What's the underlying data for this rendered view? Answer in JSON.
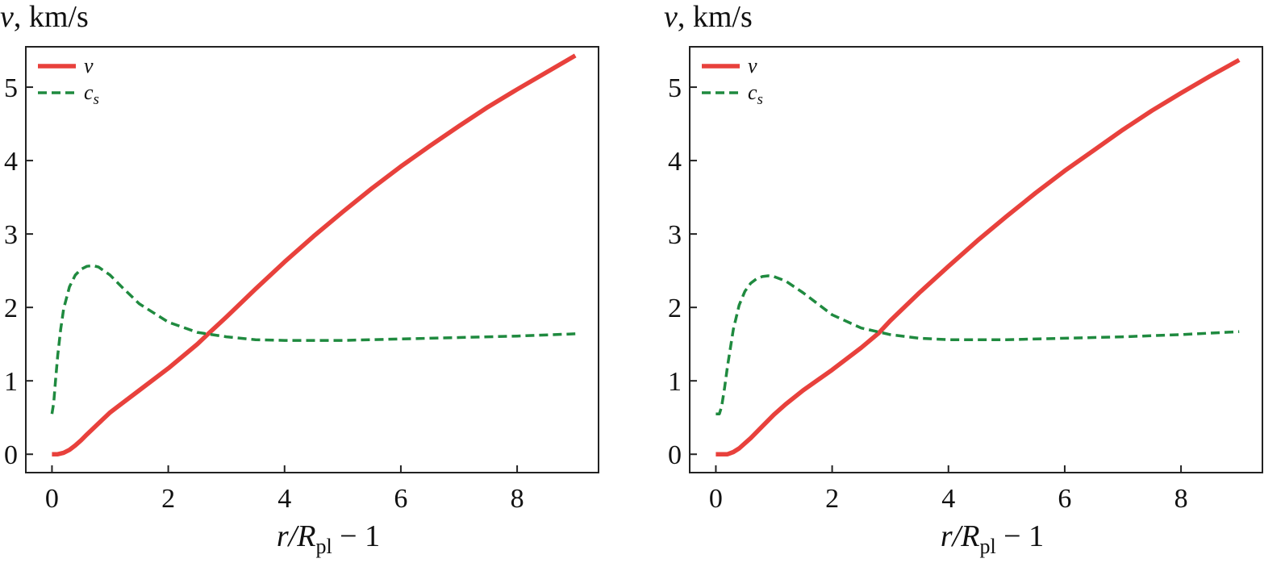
{
  "chart_data": [
    {
      "type": "line",
      "ylabel": "v, km/s",
      "xlabel": "r/Rpl − 1",
      "xlabel_parts": {
        "var": "r/",
        "R": "R",
        "sub": "pl",
        "tail": " − 1"
      },
      "xlim": [
        -0.45,
        9.4
      ],
      "ylim": [
        -0.25,
        5.55
      ],
      "xticks": [
        0,
        2,
        4,
        6,
        8
      ],
      "yticks": [
        0,
        1,
        2,
        3,
        4,
        5
      ],
      "legend_position": "top-left",
      "grid": false,
      "series": [
        {
          "name": "v",
          "color": "#e8413c",
          "dash": "solid",
          "x": [
            0,
            0.1,
            0.2,
            0.3,
            0.4,
            0.5,
            0.6,
            0.8,
            1.0,
            1.2,
            1.5,
            2.0,
            2.5,
            2.7,
            3.0,
            3.5,
            4.0,
            4.5,
            5.0,
            5.5,
            6.0,
            6.5,
            7.0,
            7.5,
            8.0,
            8.5,
            9.0
          ],
          "y": [
            0.0,
            0.0,
            0.02,
            0.06,
            0.12,
            0.19,
            0.27,
            0.42,
            0.57,
            0.69,
            0.87,
            1.17,
            1.5,
            1.65,
            1.87,
            2.25,
            2.62,
            2.97,
            3.3,
            3.62,
            3.92,
            4.2,
            4.47,
            4.73,
            4.97,
            5.2,
            5.43
          ]
        },
        {
          "name": "c_s",
          "color": "#1f8a3f",
          "dash": "dashed",
          "x": [
            0,
            0.03,
            0.06,
            0.1,
            0.15,
            0.2,
            0.3,
            0.4,
            0.5,
            0.6,
            0.7,
            0.8,
            1.0,
            1.2,
            1.5,
            2.0,
            2.5,
            3.0,
            3.5,
            4.0,
            5.0,
            6.0,
            7.0,
            8.0,
            9.0
          ],
          "y": [
            0.55,
            0.7,
            1.0,
            1.35,
            1.7,
            1.98,
            2.28,
            2.44,
            2.52,
            2.56,
            2.57,
            2.55,
            2.44,
            2.28,
            2.05,
            1.8,
            1.66,
            1.6,
            1.56,
            1.55,
            1.55,
            1.57,
            1.59,
            1.61,
            1.64
          ]
        }
      ]
    },
    {
      "type": "line",
      "ylabel": "v, km/s",
      "xlabel": "r/Rpl − 1",
      "xlabel_parts": {
        "var": "r/",
        "R": "R",
        "sub": "pl",
        "tail": " − 1"
      },
      "xlim": [
        -0.45,
        9.4
      ],
      "ylim": [
        -0.25,
        5.55
      ],
      "xticks": [
        0,
        2,
        4,
        6,
        8
      ],
      "yticks": [
        0,
        1,
        2,
        3,
        4,
        5
      ],
      "legend_position": "top-left",
      "grid": false,
      "series": [
        {
          "name": "v",
          "color": "#e8413c",
          "dash": "solid",
          "x": [
            0,
            0.1,
            0.2,
            0.3,
            0.4,
            0.5,
            0.6,
            0.8,
            1.0,
            1.2,
            1.5,
            2.0,
            2.5,
            2.8,
            3.0,
            3.5,
            4.0,
            4.5,
            5.0,
            5.5,
            6.0,
            6.5,
            7.0,
            7.5,
            8.0,
            8.5,
            9.0
          ],
          "y": [
            0.0,
            0.0,
            0.0,
            0.03,
            0.08,
            0.15,
            0.22,
            0.38,
            0.54,
            0.68,
            0.87,
            1.15,
            1.45,
            1.65,
            1.82,
            2.2,
            2.56,
            2.91,
            3.24,
            3.56,
            3.86,
            4.14,
            4.42,
            4.68,
            4.92,
            5.15,
            5.37
          ]
        },
        {
          "name": "c_s",
          "color": "#1f8a3f",
          "dash": "dashed",
          "x": [
            0,
            0.06,
            0.1,
            0.15,
            0.2,
            0.3,
            0.4,
            0.5,
            0.6,
            0.7,
            0.8,
            0.9,
            1.0,
            1.2,
            1.5,
            2.0,
            2.5,
            3.0,
            3.5,
            4.0,
            5.0,
            6.0,
            7.0,
            8.0,
            9.0
          ],
          "y": [
            0.55,
            0.55,
            0.65,
            0.9,
            1.2,
            1.7,
            2.03,
            2.22,
            2.33,
            2.39,
            2.42,
            2.43,
            2.42,
            2.36,
            2.2,
            1.9,
            1.72,
            1.63,
            1.58,
            1.56,
            1.56,
            1.58,
            1.6,
            1.63,
            1.67
          ]
        }
      ]
    }
  ]
}
